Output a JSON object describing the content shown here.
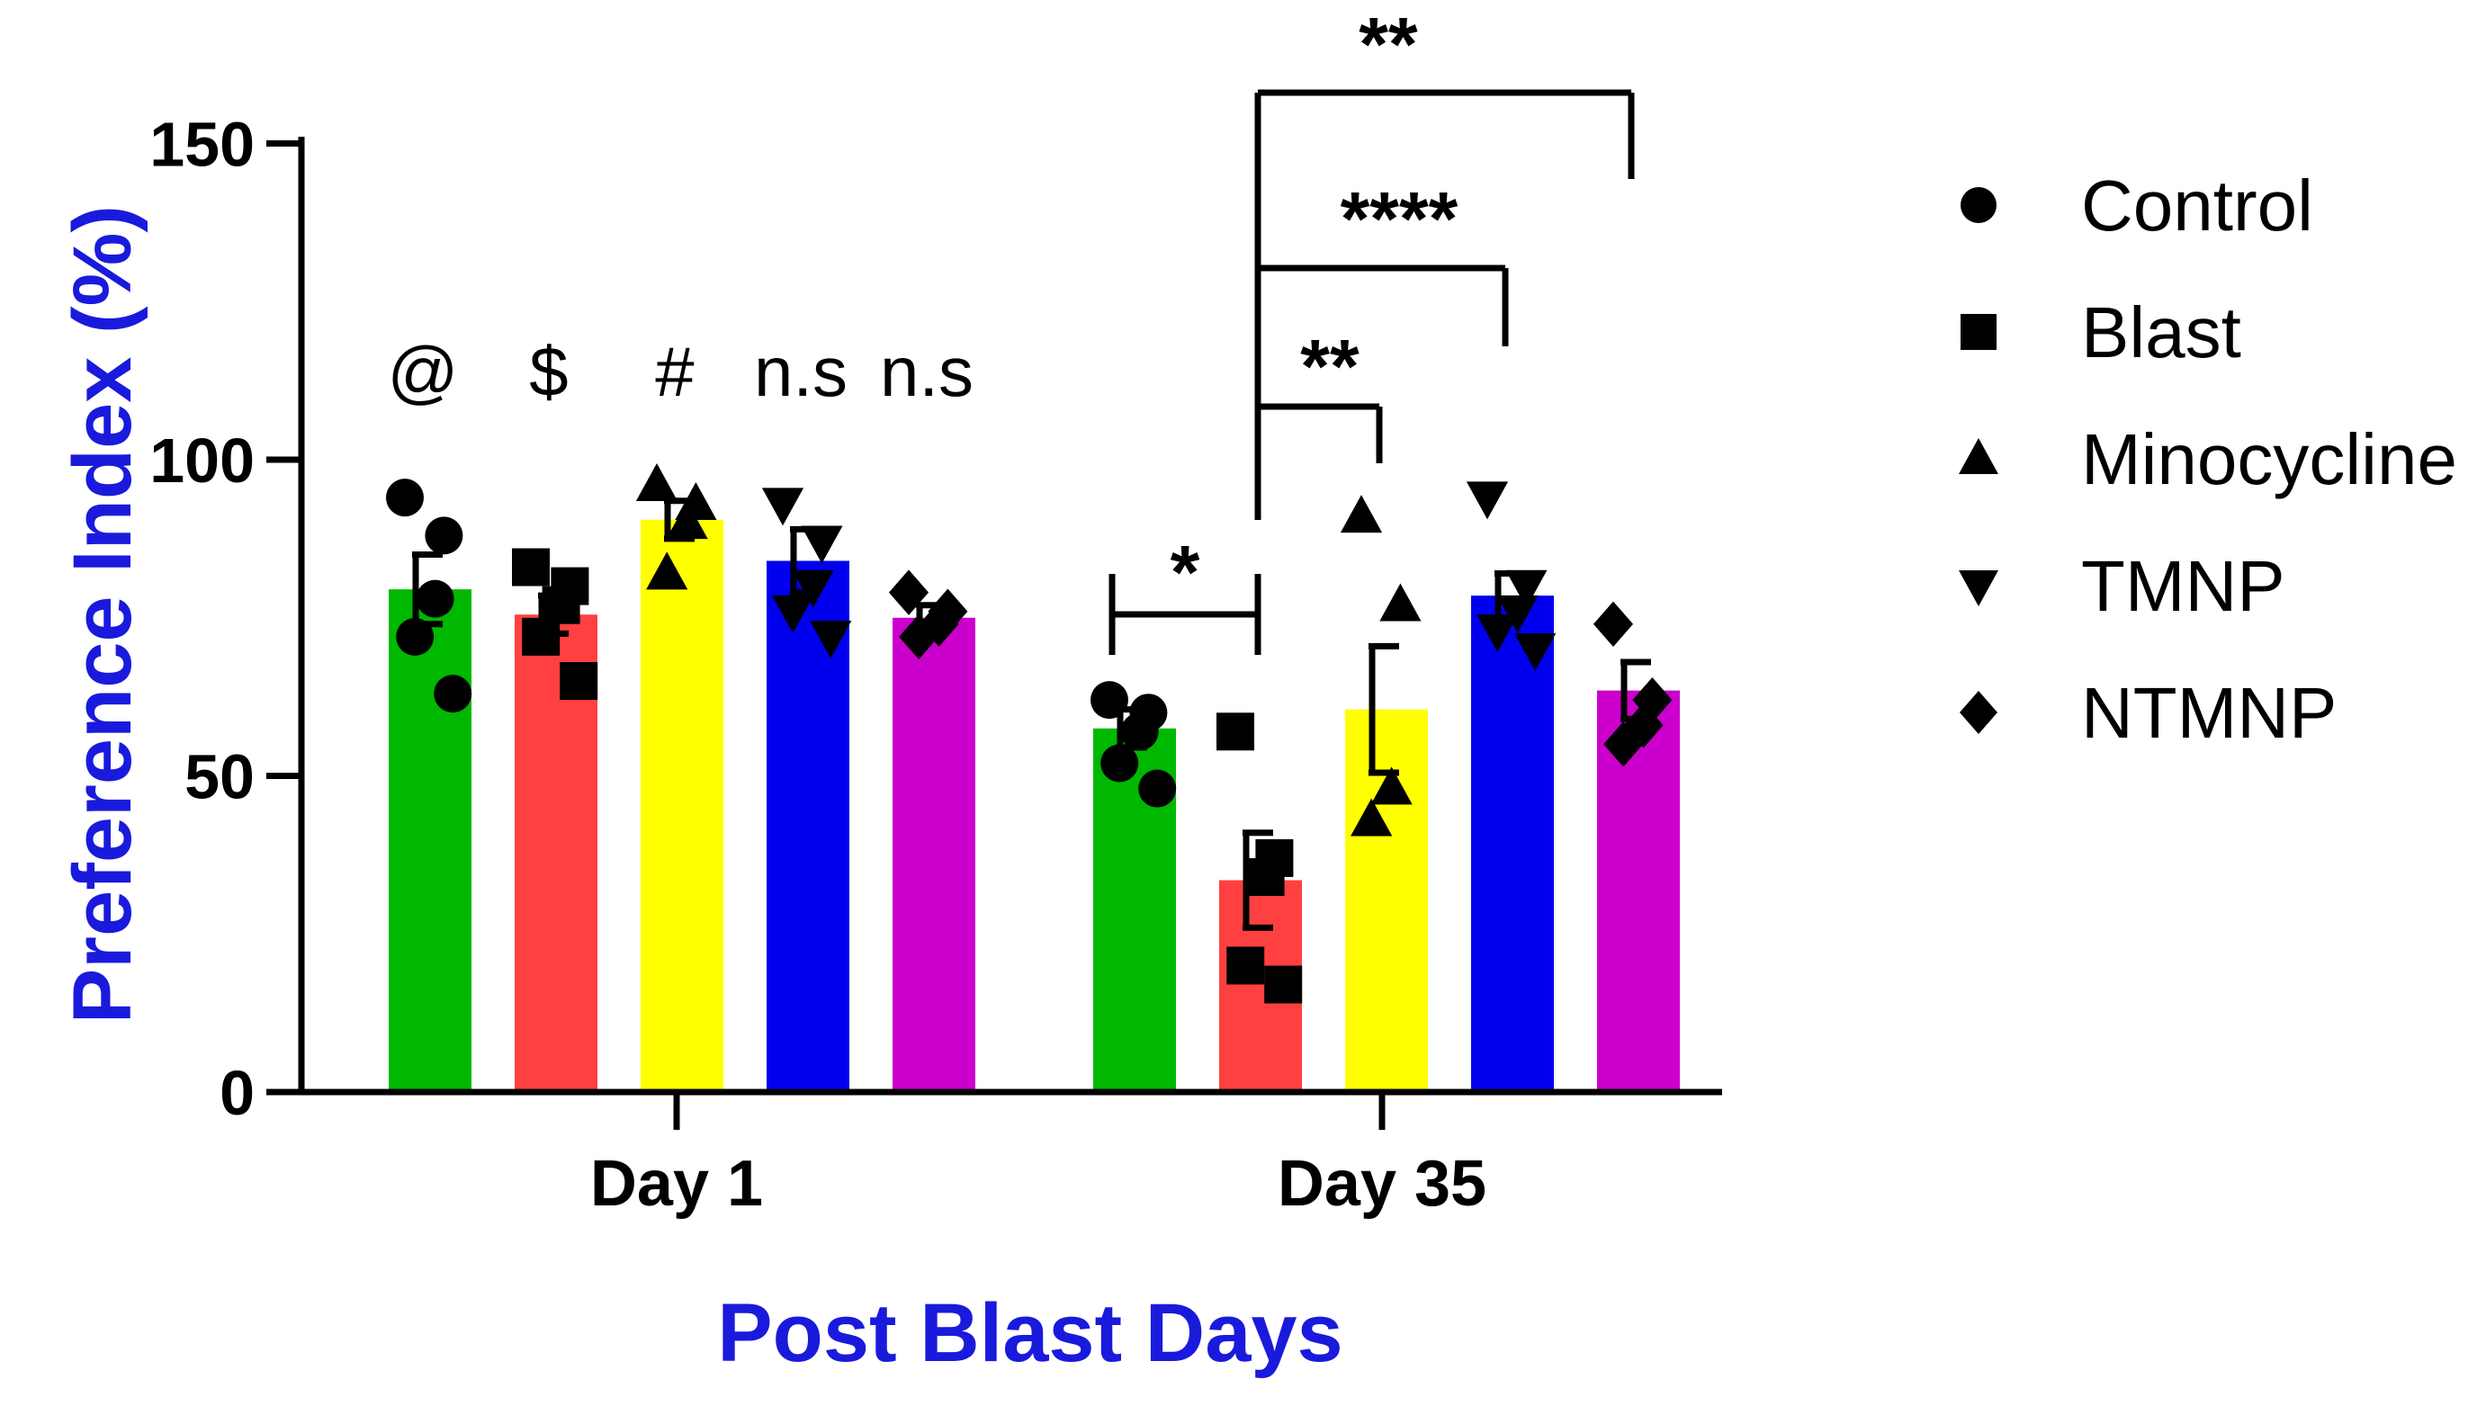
{
  "chart_data": {
    "type": "bar",
    "categories": [
      "Day 1",
      "Day 35"
    ],
    "xlabel": "Post Blast Days",
    "ylabel": "Preference Index (%)",
    "ylim": [
      0,
      150
    ],
    "yticks": [
      "0",
      "50",
      "100",
      "150"
    ],
    "colors": {
      "axis_title": "#1a1adc",
      "Control": "#00b800",
      "Blast": "#ff4040",
      "Minocycline": "#ffff00",
      "TMNP": "#0000ee",
      "NTMNP": "#cc00cc"
    },
    "series": [
      {
        "name": "Control",
        "marker": "circle",
        "values": [
          79.5,
          57.5
        ],
        "sem": [
          5.5,
          3
        ],
        "points": [
          [
            94,
            88,
            78,
            72,
            63
          ],
          [
            62,
            60,
            57,
            52,
            48
          ]
        ]
      },
      {
        "name": "Blast",
        "marker": "square",
        "values": [
          75.5,
          33.5
        ],
        "sem": [
          3,
          7.5
        ],
        "points": [
          [
            83,
            80,
            77,
            72,
            65
          ],
          [
            57,
            37,
            34,
            20,
            17
          ]
        ]
      },
      {
        "name": "Minocycline",
        "marker": "triangle-up",
        "values": [
          90.5,
          60.5
        ],
        "sem": [
          3,
          10
        ],
        "points": [
          [
            96,
            93,
            90,
            82
          ],
          [
            91,
            77,
            48,
            43
          ]
        ]
      },
      {
        "name": "TMNP",
        "marker": "triangle-down",
        "values": [
          84,
          78.5
        ],
        "sem": [
          5,
          3.5
        ],
        "points": [
          [
            93,
            87,
            80,
            76,
            72
          ],
          [
            94,
            80,
            76,
            73,
            70
          ]
        ]
      },
      {
        "name": "NTMNP",
        "marker": "diamond",
        "values": [
          75,
          63.5
        ],
        "sem": [
          2,
          4.5
        ],
        "points": [
          [
            79,
            76,
            74,
            72
          ],
          [
            74,
            62,
            58,
            55
          ]
        ]
      }
    ],
    "annotations_day1": [
      "@",
      "$",
      "#",
      "n.s",
      "n.s"
    ],
    "significance_day35": [
      {
        "label": "*",
        "from": "Control",
        "to": "Blast"
      },
      {
        "label": "**",
        "from": "Blast",
        "to": "Minocycline"
      },
      {
        "label": "****",
        "from": "Blast",
        "to": "TMNP"
      },
      {
        "label": "**",
        "from": "Blast",
        "to": "NTMNP"
      }
    ],
    "legend": {
      "position": "right",
      "entries": [
        "Control",
        "Blast",
        "Minocycline",
        "TMNP",
        "NTMNP"
      ]
    }
  }
}
